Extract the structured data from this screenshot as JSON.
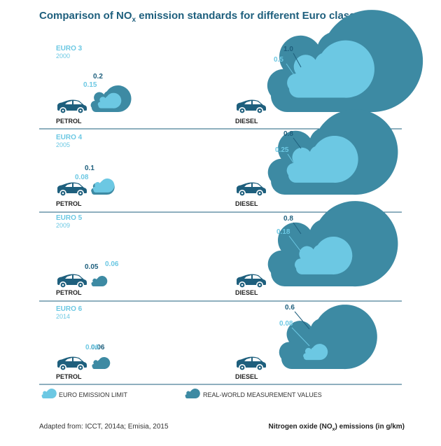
{
  "title": {
    "prefix": "Comparison of NO",
    "sub": "x",
    "suffix": " emission standards for different Euro classes"
  },
  "colors": {
    "limit": "#6cc8e3",
    "real": "#3d8aa3",
    "label_real": "#1e5f7d",
    "label_limit": "#6cc8e3",
    "car": "#1e5f7d",
    "divider": "#1e5f7d",
    "vehicle_text": "#222222"
  },
  "chart_data": {
    "type": "pictograph",
    "title": "Comparison of NOx emission standards for different Euro classes",
    "unit": "Nitrogen oxide (NOx) emissions (in g/km)",
    "series": [
      {
        "name": "EURO EMISSION LIMIT",
        "key": "limit"
      },
      {
        "name": "REAL-WORLD MEASUREMENT VALUES",
        "key": "real"
      }
    ],
    "vehicles": [
      "PETROL",
      "DIESEL"
    ],
    "classes": [
      {
        "name": "EURO 3",
        "year": "2000",
        "petrol": {
          "limit": 0.15,
          "real": 0.2,
          "limit_label": "0.15",
          "real_label": "0.2"
        },
        "diesel": {
          "limit": 0.5,
          "real": 1.0,
          "limit_label": "0.5",
          "real_label": "1.0"
        }
      },
      {
        "name": "EURO 4",
        "year": "2005",
        "petrol": {
          "limit": 0.08,
          "real": 0.1,
          "limit_label": "0.08",
          "real_label": "0.1"
        },
        "diesel": {
          "limit": 0.25,
          "real": 0.8,
          "limit_label": "0.25",
          "real_label": "0.8"
        }
      },
      {
        "name": "EURO 5",
        "year": "2009",
        "petrol": {
          "limit": 0.06,
          "real": 0.05,
          "limit_label": "0.06",
          "real_label": "0.05"
        },
        "diesel": {
          "limit": 0.18,
          "real": 0.8,
          "limit_label": "0.18",
          "real_label": "0.8"
        }
      },
      {
        "name": "EURO 6",
        "year": "2014",
        "petrol": {
          "limit": 0.06,
          "real": 0.06,
          "limit_label": "0.06",
          "real_label": "0.06"
        },
        "diesel": {
          "limit": 0.08,
          "real": 0.6,
          "limit_label": "0.08",
          "real_label": "0.6"
        }
      }
    ]
  },
  "legend": {
    "limit_label": "EURO EMISSION LIMIT",
    "real_label": "REAL-WORLD MEASUREMENT VALUES"
  },
  "footer": {
    "source": "Adapted from: ICCT, 2014a; Emisia, 2015",
    "unit_prefix": "Nitrogen oxide (NO",
    "unit_sub": "x",
    "unit_suffix": ") emissions (in g/km)"
  }
}
